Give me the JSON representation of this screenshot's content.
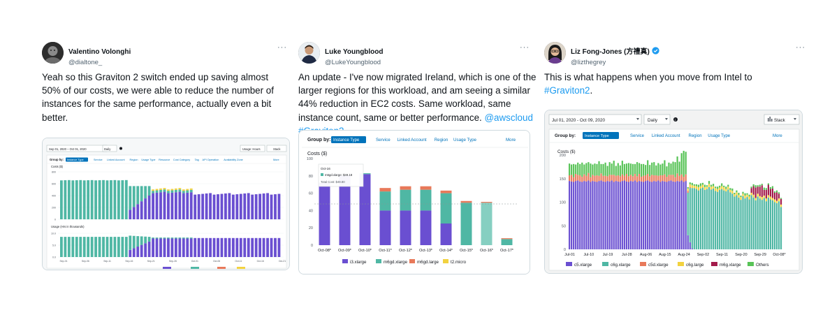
{
  "tweets": [
    {
      "name": "Valentino Volonghi",
      "handle": "@dialtone_",
      "more": "···",
      "lines": [
        "Yeah so this Graviton 2 switch ended up saving almost",
        "50% of our costs, we were able to reduce the number of",
        "instances for the same performance, actually even a bit",
        "better."
      ],
      "screenshot": {
        "date_range": "Sep 01, 2020 – Oct 01, 2020",
        "granularity": "Daily",
        "usage_filter": "Usage: Hours",
        "stack": "Stack",
        "group_by": "Group by:",
        "group_by_value": "Instance Type",
        "filters": [
          "Service",
          "Linked Account",
          "Region",
          "Usage Type",
          "Resource",
          "Cost Category",
          "Tag",
          "API Operation",
          "Availability Zone",
          "More"
        ],
        "costs_label": "Costs ($)",
        "usage_label": "Usage (Hrs in thousands)",
        "cost_ticks": [
          "800",
          "600",
          "400",
          "200",
          "0"
        ],
        "usage_ticks": [
          "10.0",
          "5.0",
          "0.0"
        ],
        "x_ticks": [
          "Sep-01",
          "Sep-06",
          "Sep-11",
          "Sep-16",
          "Sep-21",
          "Sep-26",
          "Oct-01",
          "Oct-06",
          "Oct-11",
          "Oct-16",
          "Oct-21"
        ]
      }
    },
    {
      "name": "Luke Youngblood",
      "handle": "@LukeYoungblood",
      "more": "···",
      "lines": [
        {
          "text": "An update - I've now migrated Ireland, which is one of the"
        },
        {
          "text": "larger regions for this workload, and am seeing a similar"
        },
        {
          "text": "44% reduction in EC2 costs. Same workload, same"
        },
        {
          "text": "instance count, same or better performance. ",
          "mention": "@awscloud"
        },
        {
          "hashtag": "#Graviton2"
        }
      ],
      "screenshot": {
        "group_by": "Group by:",
        "group_by_value": "Instance Type",
        "filters": [
          "Service",
          "Linked Account",
          "Region",
          "Usage Type",
          "More"
        ],
        "costs_label": "Costs ($)",
        "tooltip_date": "Oct-16",
        "tooltip_item": "m6gd.xlarge: $49.18",
        "tooltip_total": "Total Cost: $49.80",
        "legend": [
          "i3.xlarge",
          "m6gd.xlarge",
          "m6gd.large",
          "t2.micro"
        ]
      }
    },
    {
      "name": "Liz Fong-Jones (方禮真)",
      "handle": "@lizthegrey",
      "more": "···",
      "lines": [
        {
          "text": "This is what happens when you move from Intel to"
        },
        {
          "hashtag": "#Graviton2",
          "text": "."
        }
      ],
      "screenshot": {
        "date_range": "Jul 01, 2020 - Oct 09, 2020",
        "granularity": "Daily",
        "stack": "Stack",
        "group_by": "Group by:",
        "group_by_value": "Instance Type",
        "filters": [
          "Service",
          "Linked Account",
          "Region",
          "Usage Type",
          "More"
        ],
        "costs_label": "Costs ($)",
        "legend": [
          "c5.xlarge",
          "c6g.xlarge",
          "c5d.xlarge",
          "c6g.large",
          "m6g.xlarge",
          "Others"
        ]
      }
    }
  ],
  "colors": {
    "link": "#1d9bf0",
    "purple": "#6a4fd1",
    "teal": "#4fb7a4",
    "orange": "#e8795a",
    "yellow": "#f2d23f",
    "green": "#58c357",
    "crimson": "#a31b4b",
    "aws_blue": "#0073bb"
  },
  "chart_data": [
    {
      "type": "bar",
      "title": "",
      "ylabel": "Costs ($)",
      "categories": [
        "Oct-08*",
        "Oct-09*",
        "Oct-10*",
        "Oct-11*",
        "Oct-12*",
        "Oct-13*",
        "Oct-14*",
        "Oct-15*",
        "Oct-16*",
        "Oct-17*"
      ],
      "ylim": [
        0,
        100
      ],
      "yticks": [
        0,
        20,
        40,
        60,
        80,
        100
      ],
      "series": [
        {
          "name": "i3.xlarge",
          "values": [
            72,
            80,
            82,
            40,
            40,
            40,
            25,
            0,
            0,
            0
          ]
        },
        {
          "name": "m6gd.xlarge",
          "values": [
            0,
            0,
            1,
            22,
            24,
            24,
            35,
            49,
            49,
            7
          ]
        },
        {
          "name": "m6gd.large",
          "values": [
            0,
            0,
            0,
            4,
            4,
            4,
            3,
            2,
            1,
            1
          ]
        },
        {
          "name": "t2.micro",
          "values": [
            0,
            0,
            0,
            0,
            0,
            0,
            0,
            0,
            0,
            0
          ]
        }
      ]
    },
    {
      "type": "bar",
      "title": "",
      "ylabel": "Costs ($)",
      "x_tick_labels": [
        "Jul-01",
        "Jul-10",
        "Jul-19",
        "Jul-28",
        "Aug-06",
        "Aug-15",
        "Aug-24",
        "Sep-02",
        "Sep-11",
        "Sep-20",
        "Sep-29",
        "Oct-08*"
      ],
      "ylim": [
        0,
        200
      ],
      "yticks": [
        0,
        50,
        100,
        150,
        200
      ],
      "days": 101,
      "series": [
        {
          "name": "c5.xlarge",
          "values": [
            145,
            144,
            143,
            145,
            146,
            144,
            143,
            145,
            144,
            146,
            143,
            145,
            144,
            143,
            145,
            146,
            144,
            143,
            145,
            144,
            146,
            143,
            145,
            144,
            143,
            145,
            146,
            144,
            143,
            145,
            144,
            146,
            143,
            145,
            144,
            143,
            145,
            146,
            144,
            143,
            145,
            144,
            146,
            143,
            145,
            144,
            143,
            145,
            146,
            144,
            143,
            145,
            144,
            146,
            143,
            145,
            30,
            15,
            2,
            0,
            0,
            0,
            0,
            0,
            0,
            0,
            0,
            0,
            0,
            0,
            0,
            0,
            0,
            0,
            0,
            0,
            0,
            0,
            0,
            0,
            0,
            0,
            0,
            0,
            0,
            0,
            0,
            0,
            0,
            0,
            0,
            0,
            0,
            0,
            0,
            0,
            0,
            0,
            0,
            0,
            0
          ]
        },
        {
          "name": "c6g.xlarge",
          "values": [
            0,
            0,
            0,
            0,
            0,
            0,
            0,
            0,
            0,
            0,
            0,
            0,
            0,
            0,
            0,
            0,
            0,
            0,
            0,
            0,
            0,
            0,
            0,
            0,
            0,
            0,
            0,
            0,
            0,
            0,
            0,
            0,
            0,
            0,
            0,
            0,
            0,
            0,
            0,
            0,
            0,
            0,
            0,
            0,
            0,
            0,
            0,
            0,
            0,
            0,
            0,
            0,
            0,
            0,
            0,
            0,
            90,
            115,
            128,
            130,
            128,
            125,
            129,
            131,
            126,
            128,
            132,
            127,
            129,
            124,
            122,
            126,
            128,
            125,
            123,
            127,
            121,
            118,
            112,
            115,
            110,
            105,
            113,
            108,
            111,
            106,
            115,
            110,
            104,
            112,
            108,
            105,
            109,
            102,
            110,
            106,
            104,
            100,
            98,
            102,
            90
          ]
        },
        {
          "name": "c5d.xlarge",
          "values": [
            12,
            14,
            10,
            15,
            12,
            13,
            11,
            14,
            12,
            16,
            10,
            13,
            12,
            14,
            11,
            15,
            12,
            13,
            10,
            14,
            12,
            15,
            11,
            13,
            12,
            14,
            10,
            16,
            12,
            13,
            11,
            14,
            12,
            15,
            10,
            13,
            12,
            14,
            11,
            15,
            12,
            13,
            10,
            14,
            12,
            15,
            11,
            13,
            12,
            14,
            10,
            16,
            12,
            13,
            11,
            14,
            4,
            2,
            0,
            0,
            0,
            0,
            0,
            0,
            0,
            0,
            0,
            0,
            0,
            0,
            0,
            0,
            0,
            0,
            0,
            0,
            0,
            0,
            0,
            0,
            0,
            0,
            0,
            0,
            0,
            0,
            0,
            0,
            0,
            0,
            0,
            0,
            0,
            0,
            0,
            0,
            0,
            0,
            0,
            0,
            0
          ]
        },
        {
          "name": "c6g.large",
          "values": [
            0,
            0,
            0,
            0,
            0,
            0,
            0,
            0,
            0,
            0,
            0,
            0,
            0,
            0,
            0,
            0,
            0,
            0,
            0,
            0,
            0,
            0,
            0,
            0,
            0,
            0,
            0,
            0,
            0,
            0,
            0,
            0,
            0,
            0,
            0,
            0,
            0,
            0,
            0,
            0,
            0,
            0,
            0,
            0,
            0,
            0,
            0,
            0,
            0,
            0,
            0,
            0,
            0,
            0,
            0,
            0,
            5,
            6,
            6,
            5,
            6,
            7,
            5,
            6,
            6,
            5,
            7,
            6,
            5,
            6,
            6,
            5,
            6,
            7,
            5,
            6,
            5,
            6,
            5,
            6,
            5,
            6,
            5,
            6,
            5,
            6,
            5,
            6,
            5,
            6,
            5,
            6,
            5,
            6,
            5,
            6,
            5,
            6,
            5,
            6,
            5
          ]
        },
        {
          "name": "m6g.xlarge",
          "values": [
            0,
            0,
            0,
            0,
            0,
            0,
            0,
            0,
            0,
            0,
            0,
            0,
            0,
            0,
            0,
            0,
            0,
            0,
            0,
            0,
            0,
            0,
            0,
            0,
            0,
            0,
            0,
            0,
            0,
            0,
            0,
            0,
            0,
            0,
            0,
            0,
            0,
            0,
            0,
            0,
            0,
            0,
            0,
            0,
            0,
            0,
            0,
            0,
            0,
            0,
            0,
            0,
            0,
            0,
            0,
            0,
            0,
            0,
            0,
            0,
            0,
            0,
            0,
            0,
            0,
            0,
            0,
            0,
            0,
            0,
            0,
            0,
            0,
            0,
            0,
            0,
            0,
            0,
            0,
            0,
            0,
            0,
            0,
            0,
            0,
            0,
            10,
            18,
            22,
            15,
            20,
            25,
            12,
            18,
            22,
            16,
            20,
            14,
            18,
            10,
            12
          ]
        },
        {
          "name": "Others",
          "values": [
            25,
            22,
            28,
            20,
            26,
            24,
            30,
            21,
            27,
            23,
            29,
            22,
            26,
            24,
            31,
            20,
            25,
            28,
            22,
            27,
            24,
            30,
            21,
            26,
            23,
            29,
            25,
            22,
            28,
            24,
            26,
            21,
            30,
            23,
            27,
            25,
            22,
            29,
            24,
            26,
            28,
            21,
            27,
            23,
            25,
            30,
            22,
            26,
            24,
            28,
            32,
            36,
            30,
            45,
            55,
            48,
            3,
            4,
            5,
            3,
            4,
            5,
            6,
            4,
            5,
            3,
            6,
            4,
            5,
            3,
            5,
            4,
            6,
            3,
            5,
            4,
            4,
            5,
            3,
            4,
            5,
            3,
            4,
            5,
            3,
            4,
            3,
            4,
            5,
            3,
            4,
            3,
            5,
            4,
            3,
            4,
            5,
            3,
            4,
            3,
            2
          ]
        }
      ]
    }
  ]
}
